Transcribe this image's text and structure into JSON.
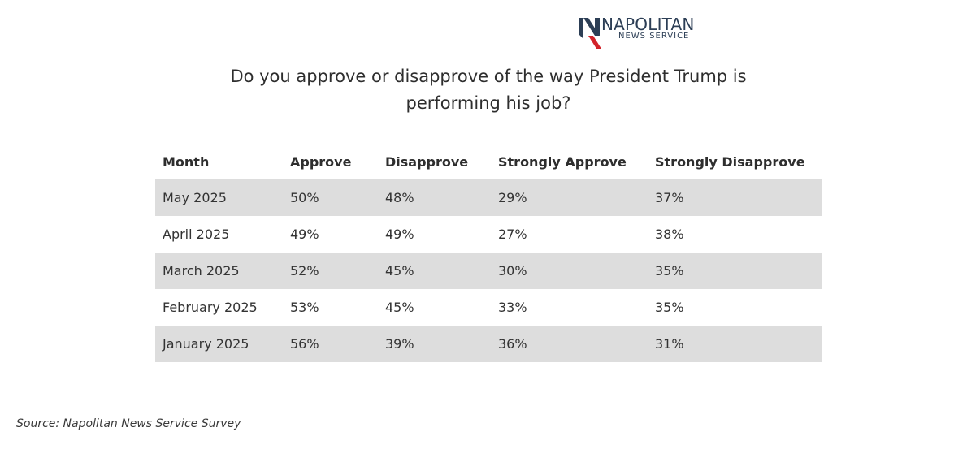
{
  "logo": {
    "name": "NAPOLITAN",
    "subtitle": "NEWS SERVICE",
    "mark_color": "#2c3e55",
    "accent_color": "#d2232a"
  },
  "chart_data": {
    "type": "table",
    "title": "Do you approve or disapprove of the way President Trump is performing his job?",
    "columns": [
      "Month",
      "Approve",
      "Disapprove",
      "Strongly Approve",
      "Strongly Disapprove"
    ],
    "rows": [
      [
        "May 2025",
        "50%",
        "48%",
        "29%",
        "37%"
      ],
      [
        "April 2025",
        "49%",
        "49%",
        "27%",
        "38%"
      ],
      [
        "March 2025",
        "52%",
        "45%",
        "30%",
        "35%"
      ],
      [
        "February 2025",
        "53%",
        "45%",
        "33%",
        "35%"
      ],
      [
        "January 2025",
        "56%",
        "39%",
        "36%",
        "31%"
      ]
    ],
    "shaded_row_color": "#dddddd"
  },
  "footer": {
    "source": "Source: Napolitan News Service Survey"
  }
}
